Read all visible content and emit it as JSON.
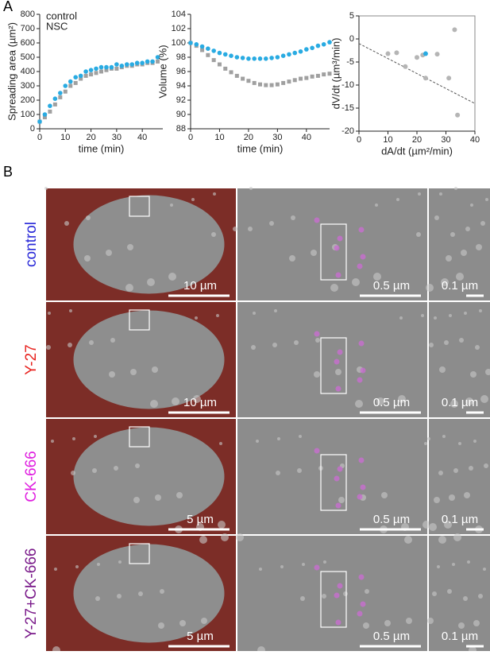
{
  "panel_labels": [
    "A",
    "B"
  ],
  "chart_data": [
    {
      "type": "scatter",
      "xlabel": "time (min)",
      "ylabel": "Spreading area (µm²)",
      "xlim": [
        0,
        48
      ],
      "xticks": [
        0,
        10,
        20,
        30,
        40
      ],
      "ylim": [
        0,
        800
      ],
      "yticks": [
        0,
        100,
        200,
        300,
        400,
        500,
        600,
        700,
        800
      ],
      "legend": "upper left",
      "series": [
        {
          "name": "control",
          "color": "#a0a0a0",
          "marker": "square",
          "x": [
            0,
            2,
            4,
            6,
            8,
            10,
            12,
            14,
            16,
            18,
            20,
            22,
            24,
            26,
            28,
            30,
            32,
            34,
            36,
            38,
            40,
            42,
            44,
            46
          ],
          "values": [
            50,
            80,
            120,
            170,
            220,
            260,
            300,
            320,
            350,
            370,
            380,
            390,
            400,
            410,
            420,
            420,
            430,
            440,
            440,
            450,
            450,
            460,
            460,
            470
          ]
        },
        {
          "name": "NSC",
          "color": "#29abe2",
          "marker": "circle",
          "x": [
            0,
            2,
            4,
            6,
            8,
            10,
            12,
            14,
            16,
            18,
            20,
            22,
            24,
            26,
            28,
            30,
            32,
            34,
            36,
            38,
            40,
            42,
            44,
            46
          ],
          "values": [
            50,
            100,
            160,
            210,
            250,
            300,
            330,
            360,
            370,
            400,
            410,
            420,
            430,
            430,
            430,
            450,
            440,
            450,
            450,
            460,
            460,
            470,
            470,
            500
          ]
        }
      ]
    },
    {
      "type": "scatter",
      "xlabel": "time (min)",
      "ylabel": "Volume (%)",
      "xlim": [
        0,
        48
      ],
      "xticks": [
        0,
        10,
        20,
        30,
        40
      ],
      "ylim": [
        88,
        104
      ],
      "yticks": [
        88,
        90,
        92,
        94,
        96,
        98,
        100,
        102,
        104
      ],
      "series": [
        {
          "color": "#a0a0a0",
          "marker": "square",
          "x": [
            0,
            2,
            4,
            6,
            8,
            10,
            12,
            14,
            16,
            18,
            20,
            22,
            24,
            26,
            28,
            30,
            32,
            34,
            36,
            38,
            40,
            42,
            44,
            46,
            48
          ],
          "values": [
            100,
            99.6,
            99,
            98.3,
            97.6,
            97,
            96.4,
            95.9,
            95.4,
            95,
            94.7,
            94.4,
            94.2,
            94.1,
            94.1,
            94.2,
            94.4,
            94.6,
            94.8,
            95,
            95.1,
            95.3,
            95.4,
            95.6,
            95.7
          ]
        },
        {
          "color": "#29abe2",
          "marker": "circle",
          "x": [
            0,
            2,
            4,
            6,
            8,
            10,
            12,
            14,
            16,
            18,
            20,
            22,
            24,
            26,
            28,
            30,
            32,
            34,
            36,
            38,
            40,
            42,
            44,
            46,
            48
          ],
          "values": [
            100,
            99.8,
            99.5,
            99.2,
            98.9,
            98.6,
            98.4,
            98.2,
            98,
            97.9,
            97.8,
            97.8,
            97.8,
            97.8,
            97.9,
            98,
            98.2,
            98.4,
            98.6,
            98.8,
            99.1,
            99.3,
            99.6,
            99.8,
            100.1
          ]
        }
      ]
    },
    {
      "type": "scatter",
      "xlabel": "dA/dt (µm²/min)",
      "ylabel": "dV/dt (µm³/min)",
      "xlim": [
        0,
        40
      ],
      "xticks": [
        0,
        10,
        20,
        30,
        40
      ],
      "ylim": [
        -20,
        5
      ],
      "yticks": [
        -20,
        -15,
        -10,
        -5,
        0,
        5
      ],
      "box": true,
      "series": [
        {
          "color": "#b5b5b5",
          "marker": "circle",
          "x": [
            10,
            13,
            16,
            20,
            22,
            23,
            27,
            31,
            33,
            34
          ],
          "values": [
            -3.2,
            -3,
            -6,
            -4,
            -3.5,
            -8.5,
            -3.3,
            -8.5,
            2,
            -16.5
          ]
        },
        {
          "color": "#29abe2",
          "marker": "circle",
          "x": [
            23
          ],
          "values": [
            -3.2
          ]
        }
      ],
      "fit_line": {
        "x": [
          0,
          40
        ],
        "values": [
          -1,
          -14
        ]
      }
    }
  ],
  "images": {
    "rows": [
      {
        "label": "control",
        "color": "#2a2ad8",
        "scale_bars": [
          "10 µm",
          "0.5 µm",
          "0.1 µm"
        ]
      },
      {
        "label": "Y-27",
        "color": "#e8221e",
        "scale_bars": [
          "10 µm",
          "0.5 µm",
          "0.1 µm"
        ]
      },
      {
        "label": "CK-666",
        "color": "#e020e0",
        "scale_bars": [
          "5 µm",
          "0.5 µm",
          "0.1 µm"
        ]
      },
      {
        "label": "Y-27+CK-666",
        "color": "#7a1a8a",
        "scale_bars": [
          "5 µm",
          "0.5 µm",
          "0.1 µm"
        ]
      }
    ]
  }
}
